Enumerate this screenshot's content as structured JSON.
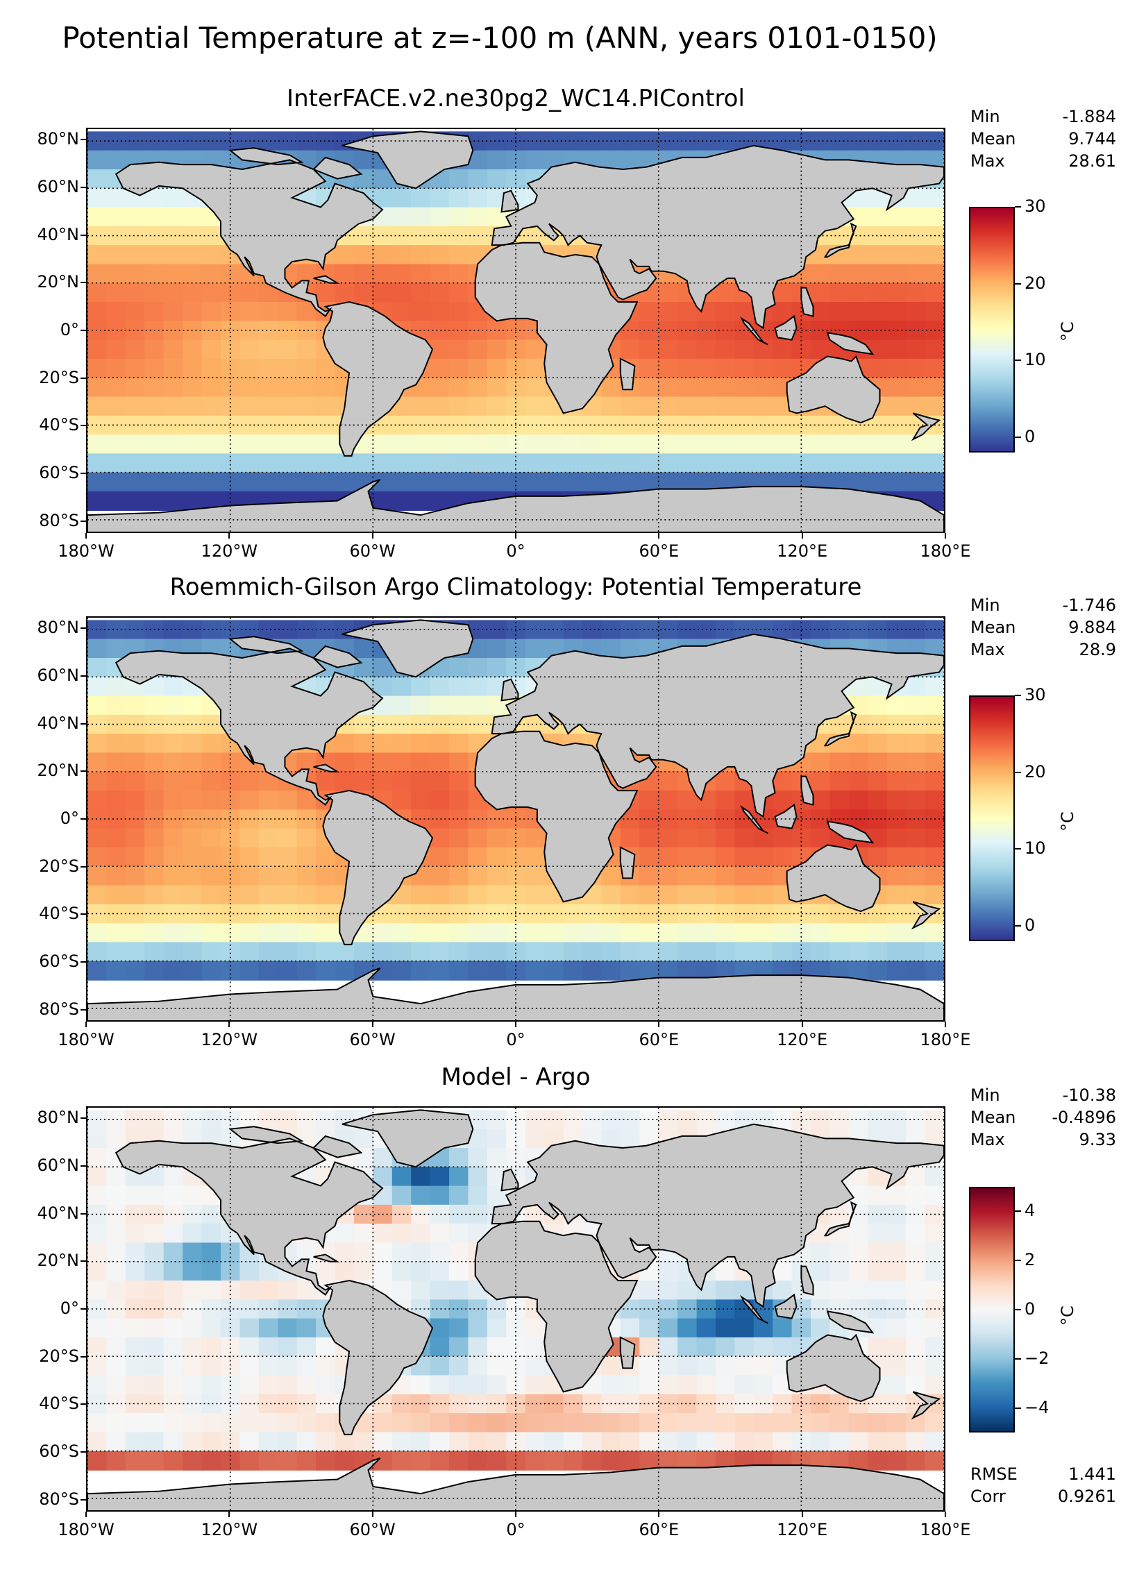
{
  "suptitle": "Potential Temperature at z=-100 m (ANN, years 0101-0150)",
  "lat_labels": [
    "80°N",
    "60°N",
    "40°N",
    "20°N",
    "0°",
    "20°S",
    "40°S",
    "60°S",
    "80°S"
  ],
  "lon_labels": [
    "180°W",
    "120°W",
    "60°W",
    "0°",
    "60°E",
    "120°E",
    "180°E"
  ],
  "stat_labels": {
    "min": "Min",
    "mean": "Mean",
    "max": "Max",
    "rmse": "RMSE",
    "corr": "Corr"
  },
  "colorbar_unit": "°C",
  "panels": [
    {
      "title": "InterFACE.v2.ne30pg2_WC14.PIControl",
      "stats": {
        "min": "-1.884",
        "mean": "9.744",
        "max": "28.61"
      },
      "colormap": "RdYlBu_r",
      "vmin": -2,
      "vmax": 30,
      "colorbar_ticks": [
        "30",
        "20",
        "10",
        "0"
      ],
      "colorbar_tick_values": [
        30,
        20,
        10,
        0
      ]
    },
    {
      "title": "Roemmich-Gilson Argo Climatology: Potential Temperature",
      "stats": {
        "min": "-1.746",
        "mean": "9.884",
        "max": "28.9"
      },
      "colormap": "RdYlBu_r",
      "vmin": -2,
      "vmax": 30,
      "colorbar_ticks": [
        "30",
        "20",
        "10",
        "0"
      ],
      "colorbar_tick_values": [
        30,
        20,
        10,
        0
      ]
    },
    {
      "title": "Model - Argo",
      "stats": {
        "min": "-10.38",
        "mean": "-0.4896",
        "max": "9.33"
      },
      "rmse": "1.441",
      "corr": "0.9261",
      "colormap": "RdBu_r",
      "vmin": -5,
      "vmax": 5,
      "colorbar_ticks": [
        "4",
        "2",
        "0",
        "−2",
        "−4"
      ],
      "colorbar_tick_values": [
        4,
        2,
        0,
        -2,
        -4
      ]
    }
  ],
  "colors": {
    "land": "#c8c8c8",
    "no_data": "#ffffff"
  }
}
